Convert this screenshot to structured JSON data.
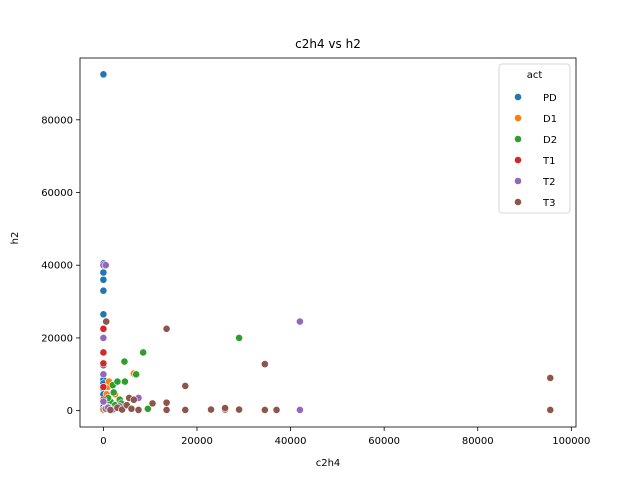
{
  "chart_data": {
    "type": "scatter",
    "title": "c2h4 vs h2",
    "xlabel": "c2h4",
    "ylabel": "h2",
    "xlim": [
      -5000,
      101000
    ],
    "ylim": [
      -4500,
      97000
    ],
    "xticks": [
      0,
      20000,
      40000,
      60000,
      80000,
      100000
    ],
    "yticks": [
      0,
      20000,
      40000,
      60000,
      80000
    ],
    "grid": false,
    "legend": {
      "title": "act",
      "placement": "top-right"
    },
    "series": [
      {
        "name": "PD",
        "color": "#1f77b4",
        "points": [
          [
            0,
            92500
          ],
          [
            0,
            40500
          ],
          [
            0,
            38000
          ],
          [
            0,
            36000
          ],
          [
            0,
            33000
          ],
          [
            0,
            26500
          ],
          [
            0,
            12500
          ],
          [
            0,
            8500
          ],
          [
            0,
            7500
          ],
          [
            0,
            6000
          ],
          [
            0,
            4500
          ],
          [
            0,
            2500
          ],
          [
            0,
            1000
          ],
          [
            0,
            200
          ]
        ]
      },
      {
        "name": "D1",
        "color": "#ff7f0e",
        "points": [
          [
            400,
            2200
          ],
          [
            700,
            4500
          ],
          [
            900,
            6500
          ],
          [
            1200,
            8000
          ],
          [
            1800,
            1200
          ],
          [
            2500,
            4500
          ],
          [
            3000,
            1800
          ],
          [
            6500,
            10200
          ],
          [
            0,
            300
          ],
          [
            500,
            600
          ]
        ]
      },
      {
        "name": "D2",
        "color": "#2ca02c",
        "points": [
          [
            1500,
            2500
          ],
          [
            2000,
            7000
          ],
          [
            2500,
            1500
          ],
          [
            3000,
            8000
          ],
          [
            3500,
            3000
          ],
          [
            4000,
            500
          ],
          [
            4500,
            13500
          ],
          [
            4600,
            8000
          ],
          [
            7000,
            10000
          ],
          [
            8500,
            16000
          ],
          [
            9500,
            500
          ],
          [
            29000,
            20000
          ],
          [
            29000,
            300
          ],
          [
            2200,
            5000
          ],
          [
            1000,
            3500
          ],
          [
            3800,
            2000
          ],
          [
            5500,
            3500
          ],
          [
            7500,
            300
          ]
        ]
      },
      {
        "name": "T1",
        "color": "#d62728",
        "points": [
          [
            0,
            22500
          ],
          [
            0,
            20000
          ],
          [
            0,
            16000
          ],
          [
            0,
            13000
          ],
          [
            0,
            10000
          ],
          [
            0,
            6500
          ],
          [
            0,
            3000
          ],
          [
            500,
            500
          ],
          [
            1000,
            1000
          ],
          [
            1500,
            200
          ]
        ]
      },
      {
        "name": "T2",
        "color": "#9467bd",
        "points": [
          [
            0,
            40000
          ],
          [
            500,
            40000
          ],
          [
            0,
            20000
          ],
          [
            0,
            10000
          ],
          [
            0,
            2500
          ],
          [
            500,
            500
          ],
          [
            1000,
            800
          ],
          [
            2000,
            300
          ],
          [
            3500,
            1200
          ],
          [
            42000,
            24500
          ],
          [
            42000,
            200
          ],
          [
            7500,
            3500
          ]
        ]
      },
      {
        "name": "T3",
        "color": "#8c564b",
        "points": [
          [
            600,
            24500
          ],
          [
            1500,
            200
          ],
          [
            3000,
            800
          ],
          [
            4000,
            300
          ],
          [
            5000,
            1500
          ],
          [
            5500,
            3500
          ],
          [
            6000,
            500
          ],
          [
            6500,
            3000
          ],
          [
            7500,
            200
          ],
          [
            10500,
            2000
          ],
          [
            13500,
            22500
          ],
          [
            13500,
            2200
          ],
          [
            13500,
            200
          ],
          [
            17500,
            6800
          ],
          [
            17500,
            200
          ],
          [
            23000,
            300
          ],
          [
            26000,
            300
          ],
          [
            26000,
            700
          ],
          [
            29000,
            300
          ],
          [
            34500,
            12800
          ],
          [
            34500,
            200
          ],
          [
            37000,
            200
          ],
          [
            95500,
            9000
          ],
          [
            95500,
            200
          ]
        ]
      }
    ]
  }
}
